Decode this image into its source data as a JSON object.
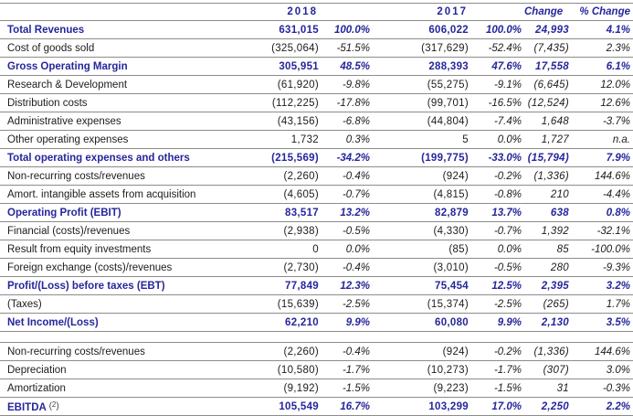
{
  "colors": {
    "accent": "#26269C",
    "text": "#1C1C1C",
    "line": "#8C8C8C",
    "footnote": "#4A4A4A",
    "background": "#FFFFFF"
  },
  "table": {
    "header": {
      "year_2018": "2018",
      "year_2017": "2017",
      "change": "Change",
      "pct_change": "% Change"
    },
    "column_names": [
      "value-2018",
      "pct-2018",
      "value-2017",
      "pct-2017",
      "change",
      "pct-change"
    ],
    "rows": [
      {
        "label": "Total Revenues",
        "values": [
          "631,015",
          "100.0%",
          "606,022",
          "100.0%",
          "24,993",
          "4.1%"
        ],
        "emphasis": true
      },
      {
        "label": "Cost of goods sold",
        "values": [
          "(325,064)",
          "-51.5%",
          "(317,629)",
          "-52.4%",
          "(7,435)",
          "2.3%"
        ],
        "emphasis": false
      },
      {
        "label": "Gross Operating Margin",
        "values": [
          "305,951",
          "48.5%",
          "288,393",
          "47.6%",
          "17,558",
          "6.1%"
        ],
        "emphasis": true
      },
      {
        "label": "Research & Development",
        "values": [
          "(61,920)",
          "-9.8%",
          "(55,275)",
          "-9.1%",
          "(6,645)",
          "12.0%"
        ],
        "emphasis": false
      },
      {
        "label": "Distribution costs",
        "values": [
          "(112,225)",
          "-17.8%",
          "(99,701)",
          "-16.5%",
          "(12,524)",
          "12.6%"
        ],
        "emphasis": false
      },
      {
        "label": "Administrative expenses",
        "values": [
          "(43,156)",
          "-6.8%",
          "(44,804)",
          "-7.4%",
          "1,648",
          "-3.7%"
        ],
        "emphasis": false
      },
      {
        "label": "Other operating expenses",
        "values": [
          "1,732",
          "0.3%",
          "5",
          "0.0%",
          "1,727",
          "n.a."
        ],
        "emphasis": false
      },
      {
        "label": "Total operating expenses and others",
        "values": [
          "(215,569)",
          "-34.2%",
          "(199,775)",
          "-33.0%",
          "(15,794)",
          "7.9%"
        ],
        "emphasis": true
      },
      {
        "label": "Non-recurring costs/revenues",
        "values": [
          "(2,260)",
          "-0.4%",
          "(924)",
          "-0.2%",
          "(1,336)",
          "144.6%"
        ],
        "emphasis": false
      },
      {
        "label": "Amort. intangible assets from acquisition",
        "values": [
          "(4,605)",
          "-0.7%",
          "(4,815)",
          "-0.8%",
          "210",
          "-4.4%"
        ],
        "emphasis": false
      },
      {
        "label": "Operating Profit (EBIT)",
        "values": [
          "83,517",
          "13.2%",
          "82,879",
          "13.7%",
          "638",
          "0.8%"
        ],
        "emphasis": true
      },
      {
        "label": "Financial (costs)/revenues",
        "values": [
          "(2,938)",
          "-0.5%",
          "(4,330)",
          "-0.7%",
          "1,392",
          "-32.1%"
        ],
        "emphasis": false
      },
      {
        "label": "Result from equity investments",
        "values": [
          "0",
          "0.0%",
          "(85)",
          "0.0%",
          "85",
          "-100.0%"
        ],
        "emphasis": false
      },
      {
        "label": "Foreign exchange (costs)/revenues",
        "values": [
          "(2,730)",
          "-0.4%",
          "(3,010)",
          "-0.5%",
          "280",
          "-9.3%"
        ],
        "emphasis": false
      },
      {
        "label": "Profit/(Loss) before taxes (EBT)",
        "values": [
          "77,849",
          "12.3%",
          "75,454",
          "12.5%",
          "2,395",
          "3.2%"
        ],
        "emphasis": true
      },
      {
        "label": "(Taxes)",
        "values": [
          "(15,639)",
          "-2.5%",
          "(15,374)",
          "-2.5%",
          "(265)",
          "1.7%"
        ],
        "emphasis": false
      },
      {
        "label": "Net Income/(Loss)",
        "values": [
          "62,210",
          "9.9%",
          "60,080",
          "9.9%",
          "2,130",
          "3.5%"
        ],
        "emphasis": true
      },
      {
        "spacer": true
      },
      {
        "label": "Non-recurring costs/revenues",
        "values": [
          "(2,260)",
          "-0.4%",
          "(924)",
          "-0.2%",
          "(1,336)",
          "144.6%"
        ],
        "emphasis": false
      },
      {
        "label": "Depreciation",
        "values": [
          "(10,580)",
          "-1.7%",
          "(10,273)",
          "-1.7%",
          "(307)",
          "3.0%"
        ],
        "emphasis": false
      },
      {
        "label": "Amortization",
        "values": [
          "(9,192)",
          "-1.5%",
          "(9,223)",
          "-1.5%",
          "31",
          "-0.3%"
        ],
        "emphasis": false
      },
      {
        "label": "EBITDA",
        "footnote_ref": "2",
        "values": [
          "105,549",
          "16.7%",
          "103,299",
          "17.0%",
          "2,250",
          "2.2%"
        ],
        "emphasis": true
      }
    ]
  }
}
